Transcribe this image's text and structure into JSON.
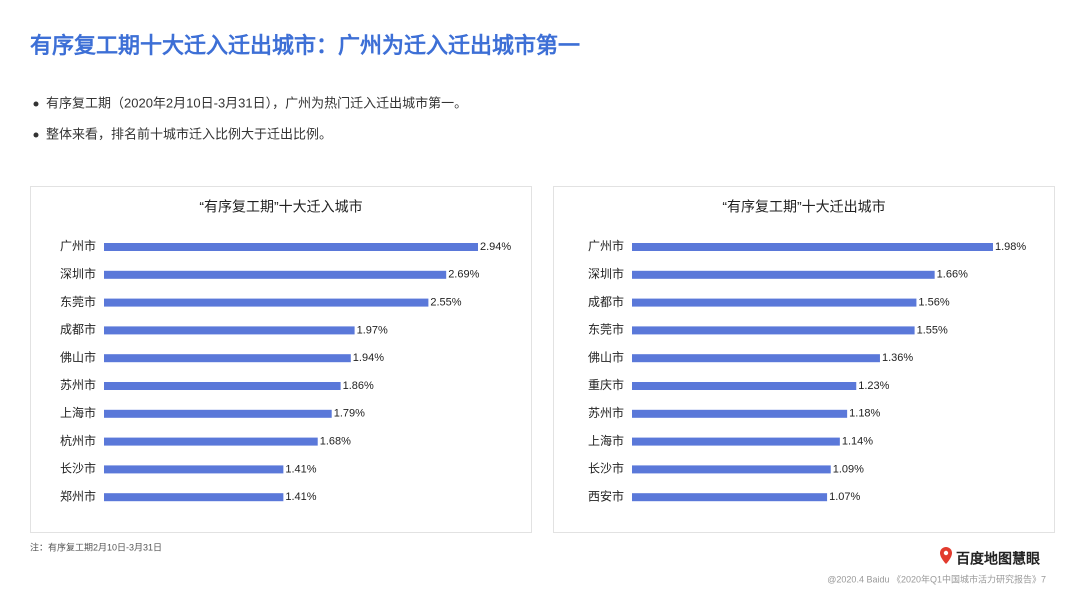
{
  "header": {
    "title": "有序复工期十大迁入迁出城市：广州为迁入迁出城市第一"
  },
  "bullets": [
    "有序复工期（2020年2月10日-3月31日），广州为热门迁入迁出城市第一。",
    "整体来看，排名前十城市迁入比例大于迁出比例。"
  ],
  "chart_data": [
    {
      "type": "bar",
      "orientation": "horizontal",
      "title": "“有序复工期”十大迁入城市",
      "color": "#5a78d9",
      "categories": [
        "广州市",
        "深圳市",
        "东莞市",
        "成都市",
        "佛山市",
        "苏州市",
        "上海市",
        "杭州市",
        "长沙市",
        "郑州市"
      ],
      "values": [
        2.94,
        2.69,
        2.55,
        1.97,
        1.94,
        1.86,
        1.79,
        1.68,
        1.41,
        1.41
      ],
      "value_labels": [
        "2.94%",
        "2.69%",
        "2.55%",
        "1.97%",
        "1.94%",
        "1.86%",
        "1.79%",
        "1.68%",
        "1.41%",
        "1.41%"
      ]
    },
    {
      "type": "bar",
      "orientation": "horizontal",
      "title": "“有序复工期”十大迁出城市",
      "color": "#5a78d9",
      "categories": [
        "广州市",
        "深圳市",
        "成都市",
        "东莞市",
        "佛山市",
        "重庆市",
        "苏州市",
        "上海市",
        "长沙市",
        "西安市"
      ],
      "values": [
        1.98,
        1.66,
        1.56,
        1.55,
        1.36,
        1.23,
        1.18,
        1.14,
        1.09,
        1.07
      ],
      "value_labels": [
        "1.98%",
        "1.66%",
        "1.56%",
        "1.55%",
        "1.36%",
        "1.23%",
        "1.18%",
        "1.14%",
        "1.09%",
        "1.07%"
      ]
    }
  ],
  "note": "注：有序复工期2月10日-3月31日",
  "logo": "百度地图慧眼",
  "footer": "@2020.4 Baidu 《2020年Q1中国城市活力研究报告》7"
}
